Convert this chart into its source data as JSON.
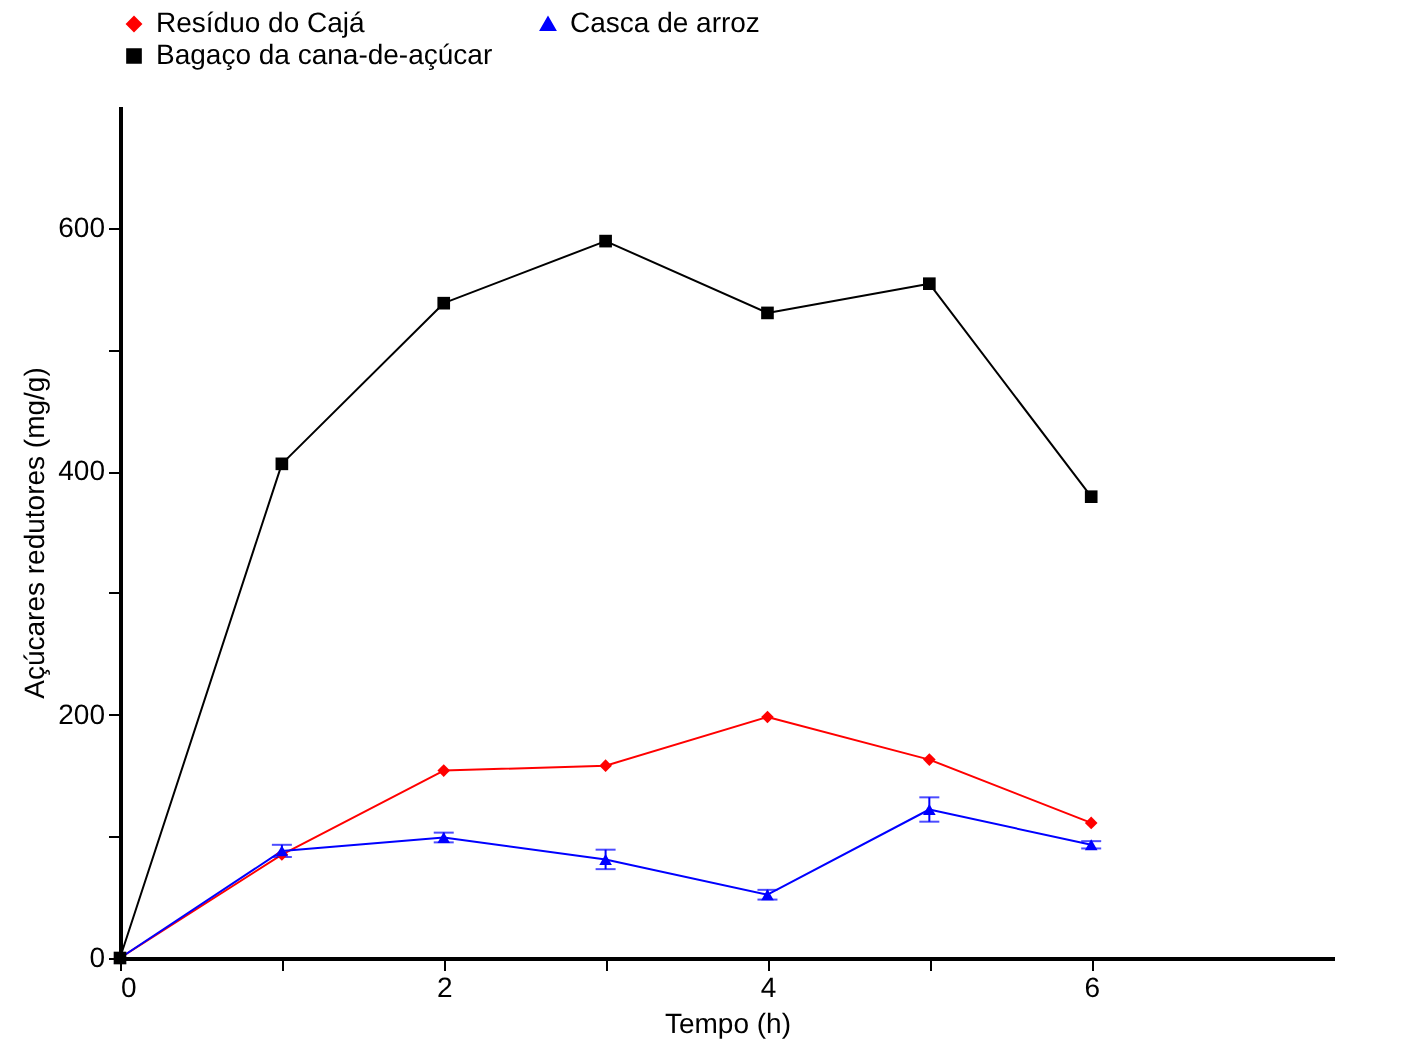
{
  "chart_data": {
    "type": "line",
    "xlabel": "Tempo (h)",
    "ylabel": "Açúcares redutores (mg/g)",
    "x": [
      0,
      1,
      2,
      3,
      4,
      5,
      6
    ],
    "series": [
      {
        "name": "Resíduo do Cajá",
        "color": "#ff0000",
        "marker": "diamond",
        "values": [
          0,
          85,
          154,
          158,
          198,
          163,
          111
        ]
      },
      {
        "name": "Casca de arroz",
        "color": "#0000ff",
        "marker": "triangle",
        "values": [
          0,
          88,
          99,
          81,
          52,
          122,
          93
        ],
        "errors": [
          null,
          5,
          4,
          8,
          4,
          10,
          3
        ]
      },
      {
        "name": "Bagaço da cana-de-açúcar",
        "color": "#000000",
        "marker": "square",
        "values": [
          0,
          406,
          538,
          589,
          530,
          554,
          379
        ]
      }
    ],
    "xlim": [
      0,
      7.5
    ],
    "xticks": [
      0,
      {
        "value": 1,
        "label": null
      },
      2,
      {
        "value": 3,
        "label": null
      },
      4,
      {
        "value": 5,
        "label": null
      },
      6
    ],
    "ylim": [
      0,
      700
    ],
    "yticks": [
      0,
      {
        "value": 100,
        "label": null
      },
      200,
      {
        "value": 300,
        "label": null
      },
      400,
      {
        "value": 500,
        "label": null
      },
      600
    ],
    "grid": false,
    "legend": "top"
  }
}
